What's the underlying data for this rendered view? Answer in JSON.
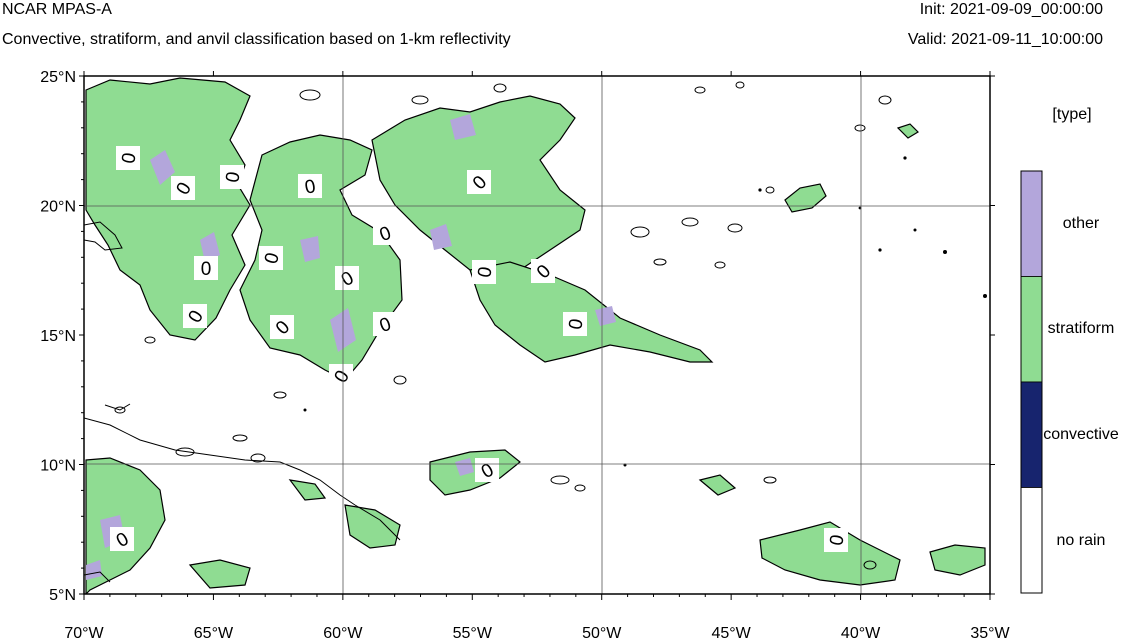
{
  "header": {
    "title": "NCAR MPAS-A",
    "subtitle": "Convective, stratiform, and anvil classification based on 1-km reflectivity",
    "init": "Init: 2021-09-09_00:00:00",
    "valid": "Valid: 2021-09-11_10:00:00"
  },
  "map": {
    "lon_range": [
      -70,
      -35
    ],
    "lat_range": [
      5,
      25
    ],
    "lat_ticks": [
      "25°N",
      "20°N",
      "15°N",
      "10°N",
      "5°N"
    ],
    "lon_ticks": [
      "70°W",
      "65°W",
      "60°W",
      "55°W",
      "50°W",
      "45°W",
      "40°W",
      "35°W"
    ],
    "grid": true,
    "contour_label": "0",
    "colors": {
      "other": "#b3a6db",
      "stratiform": "#8fdc92",
      "convective": "#17246e",
      "no_rain": "#ffffff",
      "line": "#000000"
    }
  },
  "legend": {
    "title": "[type]",
    "items": [
      {
        "label": "other",
        "color": "#b3a6db"
      },
      {
        "label": "stratiform",
        "color": "#8fdc92"
      },
      {
        "label": "convective",
        "color": "#17246e"
      },
      {
        "label": "no rain",
        "color": "#ffffff"
      }
    ]
  }
}
